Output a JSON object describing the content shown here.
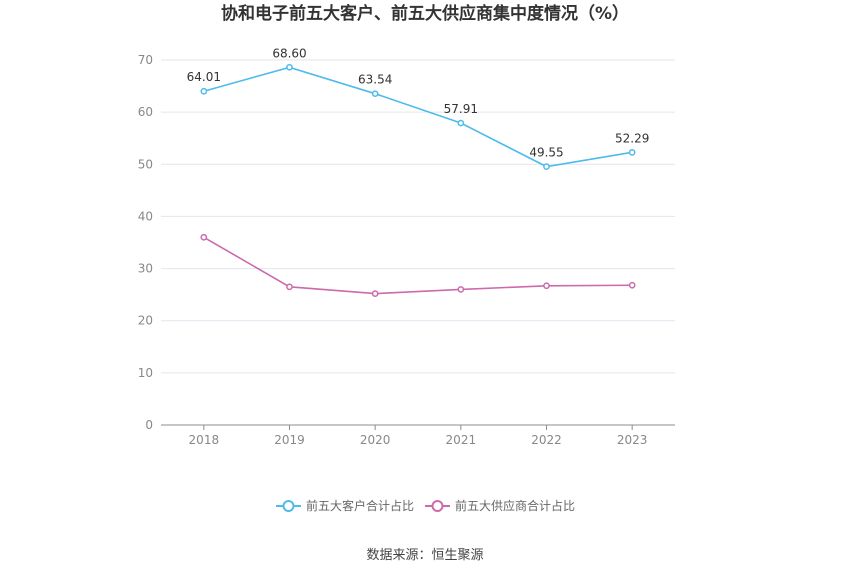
{
  "chart_data": {
    "type": "line",
    "title": "协和电子前五大客户、前五大供应商集中度情况（%）",
    "categories": [
      "2018",
      "2019",
      "2020",
      "2021",
      "2022",
      "2023"
    ],
    "ylim": [
      0,
      70
    ],
    "yticks": [
      0,
      10,
      20,
      30,
      40,
      50,
      60,
      70
    ],
    "grid": true,
    "legend_position": "bottom",
    "series": [
      {
        "name": "前五大客户合计占比",
        "color": "#4dbbeb",
        "values": [
          64.01,
          68.6,
          63.54,
          57.91,
          49.55,
          52.29
        ],
        "labels": [
          "64.01",
          "68.60",
          "63.54",
          "57.91",
          "49.55",
          "52.29"
        ],
        "show_labels": true
      },
      {
        "name": "前五大供应商合计占比",
        "color": "#cc6aab",
        "values": [
          36.0,
          26.5,
          25.2,
          26.0,
          26.7,
          26.8
        ],
        "show_labels": false
      }
    ],
    "source": "数据来源：恒生聚源"
  }
}
